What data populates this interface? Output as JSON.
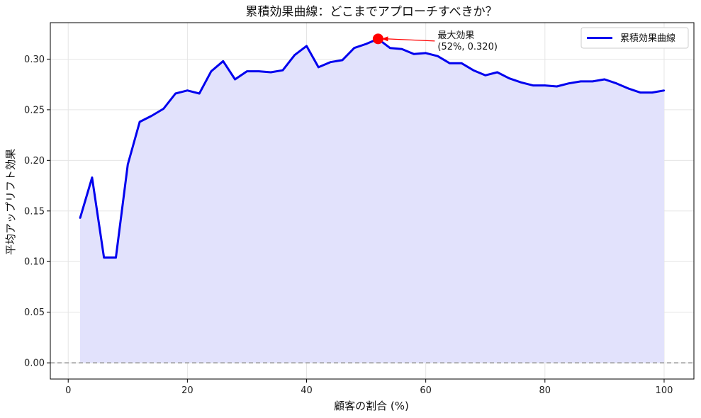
{
  "chart_data": {
    "type": "area",
    "title": "累積効果曲線：どこまでアプローチすべきか？",
    "xlabel": "顧客の割合 (%)",
    "ylabel": "平均アップリフト効果",
    "xlim": [
      -3,
      105
    ],
    "ylim": [
      -0.016,
      0.336
    ],
    "x_ticks": [
      0,
      20,
      40,
      60,
      80,
      100
    ],
    "y_ticks": [
      0.0,
      0.05,
      0.1,
      0.15,
      0.2,
      0.25,
      0.3
    ],
    "x_tick_labels": [
      "0",
      "20",
      "40",
      "60",
      "80",
      "100"
    ],
    "y_tick_labels": [
      "0.00",
      "0.05",
      "0.10",
      "0.15",
      "0.20",
      "0.25",
      "0.30"
    ],
    "grid": true,
    "legend_position": "top-right",
    "reference_line": {
      "y": 0,
      "style": "dashed",
      "color": "#999999"
    },
    "colors": {
      "line": "#0000ee",
      "fill": "#e2e2fc",
      "marker": "#ff0000",
      "arrow": "#ff0000"
    },
    "series": [
      {
        "name": "累積効果曲線",
        "x": [
          2,
          4,
          6,
          8,
          10,
          12,
          14,
          16,
          18,
          20,
          22,
          24,
          26,
          28,
          30,
          32,
          34,
          36,
          38,
          40,
          42,
          44,
          46,
          48,
          50,
          52,
          54,
          56,
          58,
          60,
          62,
          64,
          66,
          68,
          70,
          72,
          74,
          76,
          78,
          80,
          82,
          84,
          86,
          88,
          90,
          92,
          94,
          96,
          98,
          100
        ],
        "values": [
          0.143,
          0.183,
          0.104,
          0.104,
          0.196,
          0.238,
          0.244,
          0.251,
          0.266,
          0.269,
          0.266,
          0.288,
          0.298,
          0.28,
          0.288,
          0.288,
          0.287,
          0.289,
          0.304,
          0.313,
          0.292,
          0.297,
          0.299,
          0.311,
          0.315,
          0.32,
          0.311,
          0.31,
          0.305,
          0.306,
          0.303,
          0.296,
          0.296,
          0.289,
          0.284,
          0.287,
          0.281,
          0.277,
          0.274,
          0.274,
          0.273,
          0.276,
          0.278,
          0.278,
          0.28,
          0.276,
          0.271,
          0.267,
          0.267,
          0.269
        ]
      }
    ],
    "annotation": {
      "line1": "最大効果",
      "line2": "(52%, 0.320)",
      "x": 52,
      "y": 0.32
    }
  }
}
